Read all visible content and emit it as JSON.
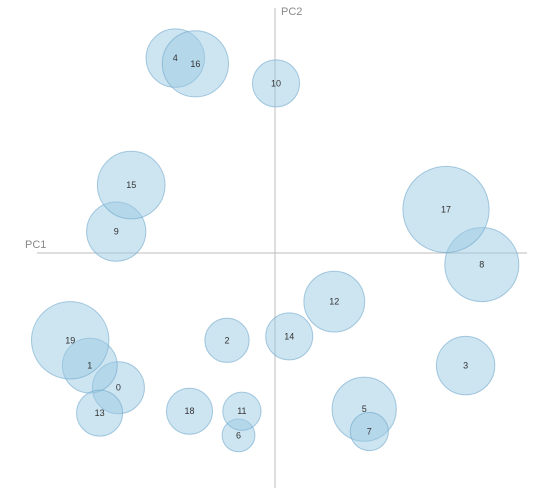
{
  "chart_data": {
    "type": "scatter",
    "xlabel": "PC1",
    "ylabel": "PC2",
    "xlim": [
      -1.0,
      1.0
    ],
    "ylim": [
      -1.0,
      1.0
    ],
    "grid": false,
    "axes_through_origin": true,
    "bubble_fill": "#9cc9e3",
    "bubble_stroke": "#6fa8cc",
    "points": [
      {
        "label": "0",
        "x": -0.639,
        "y": -0.591,
        "r": 0.106
      },
      {
        "label": "1",
        "x": -0.756,
        "y": -0.494,
        "r": 0.112
      },
      {
        "label": "2",
        "x": -0.196,
        "y": -0.383,
        "r": 0.09
      },
      {
        "label": "3",
        "x": 0.778,
        "y": -0.494,
        "r": 0.119
      },
      {
        "label": "4",
        "x": -0.407,
        "y": 0.855,
        "r": 0.119
      },
      {
        "label": "5",
        "x": 0.364,
        "y": -0.685,
        "r": 0.131
      },
      {
        "label": "6",
        "x": -0.149,
        "y": -0.8,
        "r": 0.067
      },
      {
        "label": "7",
        "x": 0.385,
        "y": -0.783,
        "r": 0.078
      },
      {
        "label": "8",
        "x": 0.844,
        "y": -0.051,
        "r": 0.151
      },
      {
        "label": "9",
        "x": -0.648,
        "y": 0.094,
        "r": 0.121
      },
      {
        "label": "10",
        "x": 0.004,
        "y": 0.744,
        "r": 0.096
      },
      {
        "label": "11",
        "x": -0.135,
        "y": -0.694,
        "r": 0.078
      },
      {
        "label": "12",
        "x": 0.242,
        "y": -0.213,
        "r": 0.124
      },
      {
        "label": "13",
        "x": -0.716,
        "y": -0.702,
        "r": 0.094
      },
      {
        "label": "14",
        "x": 0.058,
        "y": -0.366,
        "r": 0.096
      },
      {
        "label": "15",
        "x": -0.587,
        "y": 0.298,
        "r": 0.138
      },
      {
        "label": "16",
        "x": -0.325,
        "y": 0.83,
        "r": 0.135
      },
      {
        "label": "17",
        "x": 0.698,
        "y": 0.191,
        "r": 0.176
      },
      {
        "label": "18",
        "x": -0.349,
        "y": -0.694,
        "r": 0.094
      },
      {
        "label": "19",
        "x": -0.836,
        "y": -0.383,
        "r": 0.158
      }
    ]
  }
}
